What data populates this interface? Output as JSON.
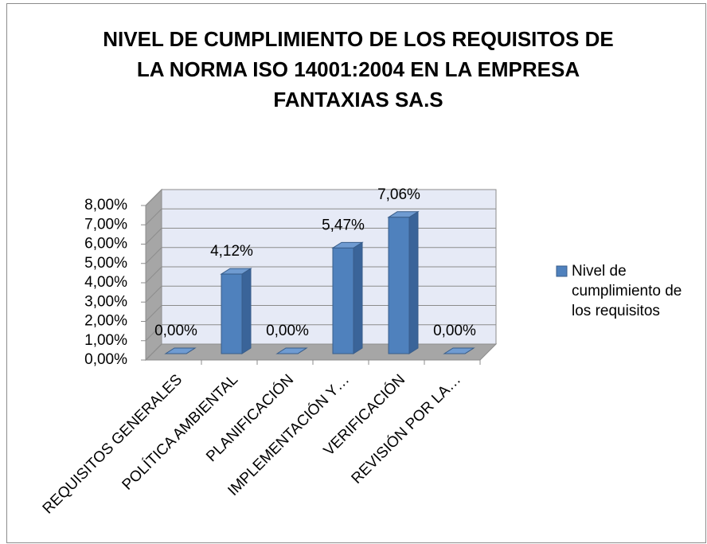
{
  "chart_data": {
    "type": "bar3d",
    "title": "NIVEL DE CUMPLIMIENTO DE LOS REQUISITOS  DE LA NORMA ISO 14001:2004 EN LA EMPRESA FANTAXIAS SA.S",
    "categories": [
      "REQUISITOS GENERALES",
      "POLÍTICA AMBIENTAL",
      "PLANIFICACIÓN",
      "IMPLEMENTACIÓN Y…",
      "VERIFICACIÓN",
      "REVISIÓN POR LA…"
    ],
    "series": [
      {
        "name": "Nivel de cumplimiento de los requisitos",
        "color": "#4f81bd",
        "values": [
          0,
          4.12,
          0,
          5.47,
          7.06,
          0
        ],
        "value_labels": [
          "0,00%",
          "4,12%",
          "0,00%",
          "5,47%",
          "7,06%",
          "0,00%"
        ]
      }
    ],
    "ylim": [
      0,
      8
    ],
    "yticks": [
      {
        "value": 0,
        "label": "0,00%"
      },
      {
        "value": 1,
        "label": "1,00%"
      },
      {
        "value": 2,
        "label": "2,00%"
      },
      {
        "value": 3,
        "label": "3,00%"
      },
      {
        "value": 4,
        "label": "4,00%"
      },
      {
        "value": 5,
        "label": "5,00%"
      },
      {
        "value": 6,
        "label": "6,00%"
      },
      {
        "value": 7,
        "label": "7,00%"
      },
      {
        "value": 8,
        "label": "8,00%"
      }
    ],
    "grid": true,
    "legend": "right"
  }
}
